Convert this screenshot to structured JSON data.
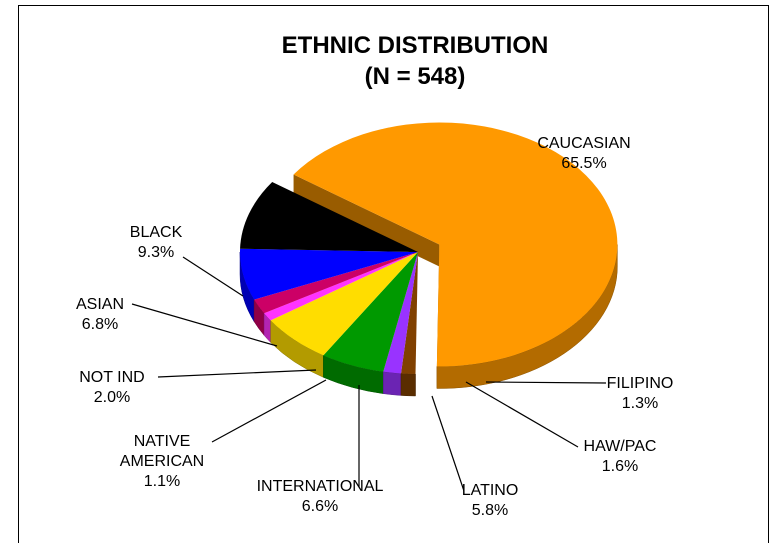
{
  "chart_data": {
    "type": "pie",
    "title": "ETHNIC DISTRIBUTION",
    "subtitle": "(N = 548)",
    "slices": [
      {
        "label": "CAUCASIAN",
        "value": 65.5,
        "display": "65.5%",
        "color": "#ff9900"
      },
      {
        "label": "FILIPINO",
        "value": 1.3,
        "display": "1.3%",
        "color": "#804000"
      },
      {
        "label": "HAW/PAC",
        "value": 1.6,
        "display": "1.6%",
        "color": "#9933ff"
      },
      {
        "label": "LATINO",
        "value": 5.8,
        "display": "5.8%",
        "color": "#009900"
      },
      {
        "label": "INTERNATIONAL",
        "value": 6.6,
        "display": "6.6%",
        "color": "#ffdd00"
      },
      {
        "label": "NATIVE AMERICAN",
        "value": 1.1,
        "display": "1.1%",
        "color": "#ff33ff"
      },
      {
        "label": "NOT IND",
        "value": 2.0,
        "display": "2.0%",
        "color": "#cc0066"
      },
      {
        "label": "ASIAN",
        "value": 6.8,
        "display": "6.8%",
        "color": "#0000ff"
      },
      {
        "label": "BLACK",
        "value": 9.3,
        "display": "9.3%",
        "color": "#000000"
      }
    ]
  }
}
